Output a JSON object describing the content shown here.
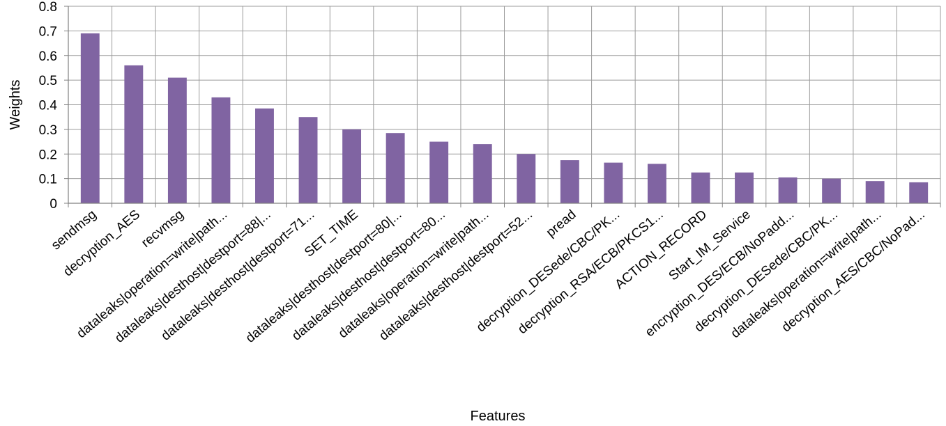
{
  "chart_data": {
    "type": "bar",
    "title": "",
    "xlabel": "Features",
    "ylabel": "Weights",
    "ylim": [
      0,
      0.8
    ],
    "yticks": [
      "0",
      "0.1",
      "0.2",
      "0.3",
      "0.4",
      "0.5",
      "0.6",
      "0.7",
      "0.8"
    ],
    "grid": true,
    "legend": "none",
    "bar_color": "#8064a2",
    "grid_color": "#9b9b9b",
    "categories": [
      "sendmsg",
      "decryption_AES",
      "recvmsg",
      "dataleaks|operation=write|path...",
      "dataleaks|desthost|destport=88|...",
      "dataleaks|desthost|destport=71...",
      "SET_TIME",
      "dataleaks|desthost|destport=80|...",
      "dataleaks|desthost|destport=80...",
      "dataleaks|operation=write|path...",
      "dataleaks|desthost|destport=52...",
      "pread",
      "decryption_DESede/CBC/PK...",
      "decryption_RSA/ECB/PKCS1...",
      "ACTION_RECORD",
      "Start_IM_Service",
      "encryption_DES/ECB/NoPadd...",
      "decryption_DESede/CBC/PK...",
      "dataleaks|operation=write|path...",
      "decryption_AES/CBC/NoPad..."
    ],
    "values": [
      0.69,
      0.56,
      0.51,
      0.43,
      0.385,
      0.35,
      0.3,
      0.285,
      0.25,
      0.24,
      0.2,
      0.175,
      0.165,
      0.16,
      0.125,
      0.125,
      0.105,
      0.1,
      0.09,
      0.085
    ]
  }
}
